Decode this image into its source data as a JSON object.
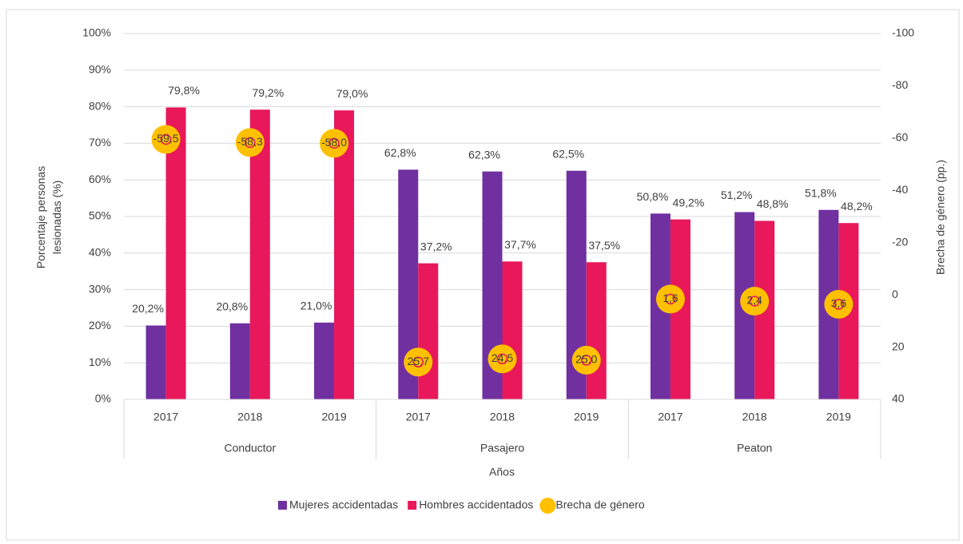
{
  "chart_data": {
    "type": "bar_line",
    "categories": [
      "2017",
      "2018",
      "2019",
      "2017",
      "2018",
      "2019",
      "2017",
      "2018",
      "2019"
    ],
    "groups": [
      "Conductor",
      "Pasajero",
      "Peaton"
    ],
    "xlabel": "Años",
    "ylabel": "Porcentaje personas lesionadas (%)",
    "y2label": "Brecha de género (pp.)",
    "ylim": [
      0,
      100
    ],
    "yticks": [
      {
        "value": 0,
        "label": "0%"
      },
      {
        "value": 10,
        "label": "10%"
      },
      {
        "value": 20,
        "label": "20%"
      },
      {
        "value": 30,
        "label": "30%"
      },
      {
        "value": 40,
        "label": "40%"
      },
      {
        "value": 50,
        "label": "50%"
      },
      {
        "value": 60,
        "label": "60%"
      },
      {
        "value": 70,
        "label": "70%"
      },
      {
        "value": 80,
        "label": "80%"
      },
      {
        "value": 90,
        "label": "90%"
      },
      {
        "value": 100,
        "label": "100%"
      }
    ],
    "y2lim": [
      -100,
      40
    ],
    "y2_reversed": true,
    "y2ticks": [
      -100,
      -80,
      -60,
      -40,
      -20,
      0,
      20,
      40
    ],
    "legend": "bottom",
    "series": [
      {
        "name": "Mujeres accidentadas",
        "type": "bar",
        "color": "#7030a0",
        "values": [
          20.2,
          20.8,
          21.0,
          62.8,
          62.3,
          62.5,
          50.8,
          51.2,
          51.8
        ],
        "value_labels": [
          "20,2%",
          "20,8%",
          "21,0%",
          "62,8%",
          "62,3%",
          "62,5%",
          "50,8%",
          "51,2%",
          "51,8%"
        ]
      },
      {
        "name": "Hombres accidentados",
        "type": "bar",
        "color": "#e8185a",
        "values": [
          79.8,
          79.2,
          79.0,
          37.2,
          37.7,
          37.5,
          49.2,
          48.8,
          48.2
        ],
        "value_labels": [
          "79,8%",
          "79,2%",
          "79,0%",
          "37,2%",
          "37,7%",
          "37,5%",
          "49,2%",
          "48,8%",
          "48,2%"
        ]
      },
      {
        "name": "Brecha de género",
        "type": "scatter",
        "axis": "y2",
        "color": "#ffc000",
        "values": [
          -59.5,
          -58.3,
          -58.0,
          25.7,
          24.5,
          25.0,
          1.6,
          2.4,
          3.6
        ],
        "value_labels": [
          "-59,5",
          "-58,3",
          "-58,0",
          "25,7",
          "24,5",
          "25,0",
          "1,6",
          "2,4",
          "3,6"
        ]
      }
    ]
  }
}
